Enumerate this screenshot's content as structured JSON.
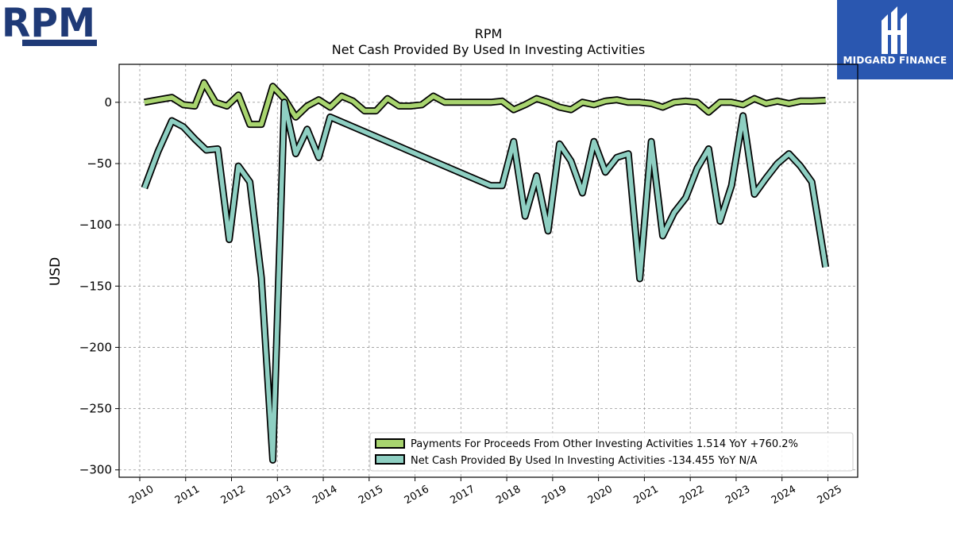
{
  "company_logo": {
    "text": "RPM",
    "color": "#1f3a77"
  },
  "brand_logo": {
    "name": "MIDGARD FINANCE",
    "bg": "#2a57b0"
  },
  "chart_data": {
    "type": "line",
    "title": "RPM",
    "subtitle": "Net Cash Provided By Used In Investing Activities",
    "ylabel": "USD",
    "xlabel": "",
    "xlim": [
      2009.55,
      2025.65
    ],
    "ylim": [
      -306,
      31
    ],
    "grid": true,
    "legend_position": "lower-right",
    "x_ticks": [
      2010,
      2011,
      2012,
      2013,
      2014,
      2015,
      2016,
      2017,
      2018,
      2019,
      2020,
      2021,
      2022,
      2023,
      2024,
      2025
    ],
    "y_ticks": [
      0,
      -50,
      -100,
      -150,
      -200,
      -250,
      -300
    ],
    "y_tick_labels": [
      "0",
      "−50",
      "−100",
      "−150",
      "−200",
      "−250",
      "−300"
    ],
    "series": [
      {
        "name": "Payments For Proceeds From Other Investing Activities",
        "legend_label": "Payments For Proceeds From Other Investing Activities  1.514 YoY +760.2%",
        "color": "#a8d46f",
        "points": [
          [
            2010.1,
            0
          ],
          [
            2010.4,
            2
          ],
          [
            2010.7,
            4
          ],
          [
            2010.95,
            -2
          ],
          [
            2011.2,
            -3
          ],
          [
            2011.4,
            16
          ],
          [
            2011.65,
            0
          ],
          [
            2011.9,
            -3
          ],
          [
            2012.15,
            6
          ],
          [
            2012.4,
            -18
          ],
          [
            2012.65,
            -18
          ],
          [
            2012.9,
            13
          ],
          [
            2013.15,
            3
          ],
          [
            2013.4,
            -12
          ],
          [
            2013.65,
            -3
          ],
          [
            2013.9,
            2
          ],
          [
            2014.15,
            -4
          ],
          [
            2014.4,
            5
          ],
          [
            2014.65,
            1
          ],
          [
            2014.9,
            -7
          ],
          [
            2015.15,
            -7
          ],
          [
            2015.4,
            3
          ],
          [
            2015.65,
            -3
          ],
          [
            2015.9,
            -3
          ],
          [
            2016.15,
            -2
          ],
          [
            2016.4,
            5
          ],
          [
            2016.65,
            0
          ],
          [
            2016.9,
            0
          ],
          [
            2017.15,
            0
          ],
          [
            2017.4,
            0
          ],
          [
            2017.65,
            0
          ],
          [
            2017.9,
            1
          ],
          [
            2018.15,
            -6
          ],
          [
            2018.4,
            -2
          ],
          [
            2018.65,
            3
          ],
          [
            2018.9,
            0
          ],
          [
            2019.15,
            -4
          ],
          [
            2019.4,
            -6
          ],
          [
            2019.65,
            0
          ],
          [
            2019.9,
            -2
          ],
          [
            2020.15,
            1
          ],
          [
            2020.4,
            2
          ],
          [
            2020.65,
            0
          ],
          [
            2020.9,
            0
          ],
          [
            2021.15,
            -1
          ],
          [
            2021.4,
            -4
          ],
          [
            2021.65,
            0
          ],
          [
            2021.9,
            1
          ],
          [
            2022.15,
            0
          ],
          [
            2022.4,
            -8
          ],
          [
            2022.65,
            0
          ],
          [
            2022.9,
            0
          ],
          [
            2023.15,
            -2
          ],
          [
            2023.4,
            3
          ],
          [
            2023.65,
            -1
          ],
          [
            2023.9,
            1
          ],
          [
            2024.15,
            -1
          ],
          [
            2024.4,
            1
          ],
          [
            2024.65,
            1
          ],
          [
            2024.95,
            1.514
          ]
        ]
      },
      {
        "name": "Net Cash Provided By Used In Investing Activities",
        "legend_label": "Net Cash Provided By Used In Investing Activities  -134.455 YoY N/A",
        "color": "#8ecfc2",
        "points": [
          [
            2010.1,
            -70
          ],
          [
            2010.4,
            -40
          ],
          [
            2010.7,
            -15
          ],
          [
            2010.95,
            -20
          ],
          [
            2011.2,
            -30
          ],
          [
            2011.45,
            -39
          ],
          [
            2011.7,
            -38
          ],
          [
            2011.95,
            -112
          ],
          [
            2012.15,
            -52
          ],
          [
            2012.4,
            -65
          ],
          [
            2012.65,
            -143
          ],
          [
            2012.9,
            -292
          ],
          [
            2013.15,
            0
          ],
          [
            2013.4,
            -42
          ],
          [
            2013.65,
            -22
          ],
          [
            2013.9,
            -45
          ],
          [
            2014.15,
            -12
          ],
          [
            2017.65,
            -68
          ],
          [
            2017.9,
            -68
          ],
          [
            2018.15,
            -32
          ],
          [
            2018.4,
            -93
          ],
          [
            2018.65,
            -60
          ],
          [
            2018.9,
            -105
          ],
          [
            2019.15,
            -34
          ],
          [
            2019.4,
            -48
          ],
          [
            2019.65,
            -74
          ],
          [
            2019.9,
            -32
          ],
          [
            2020.15,
            -57
          ],
          [
            2020.4,
            -45
          ],
          [
            2020.65,
            -42
          ],
          [
            2020.9,
            -144
          ],
          [
            2021.15,
            -32
          ],
          [
            2021.4,
            -109
          ],
          [
            2021.65,
            -90
          ],
          [
            2021.9,
            -78
          ],
          [
            2022.15,
            -54
          ],
          [
            2022.4,
            -38
          ],
          [
            2022.65,
            -97
          ],
          [
            2022.9,
            -68
          ],
          [
            2023.15,
            -11
          ],
          [
            2023.4,
            -75
          ],
          [
            2023.65,
            -62
          ],
          [
            2023.9,
            -50
          ],
          [
            2024.15,
            -42
          ],
          [
            2024.4,
            -52
          ],
          [
            2024.65,
            -65
          ],
          [
            2024.95,
            -134.455
          ]
        ]
      }
    ]
  }
}
